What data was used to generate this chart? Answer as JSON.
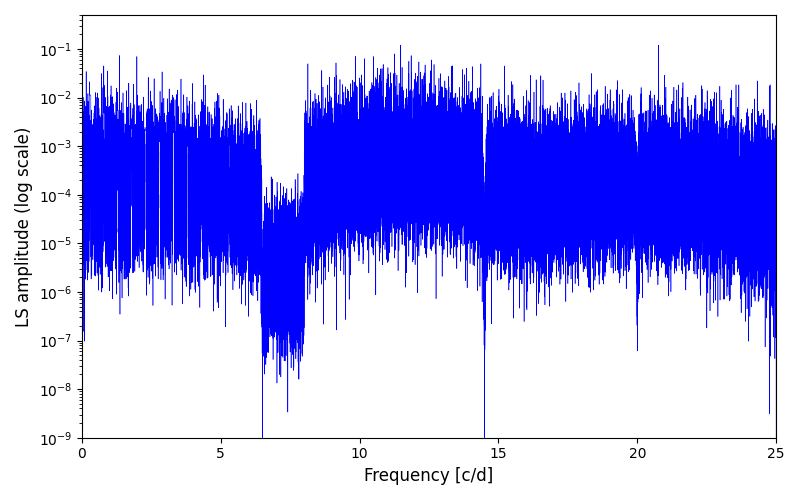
{
  "xlabel": "Frequency [c/d]",
  "ylabel": "LS amplitude (log scale)",
  "line_color": "#0000ff",
  "xlim": [
    0,
    25
  ],
  "ylim": [
    1e-09,
    0.5
  ],
  "xticks": [
    0,
    5,
    10,
    15,
    20,
    25
  ],
  "figsize": [
    8.0,
    5.0
  ],
  "dpi": 100,
  "n_points": 50000,
  "seed": 7
}
